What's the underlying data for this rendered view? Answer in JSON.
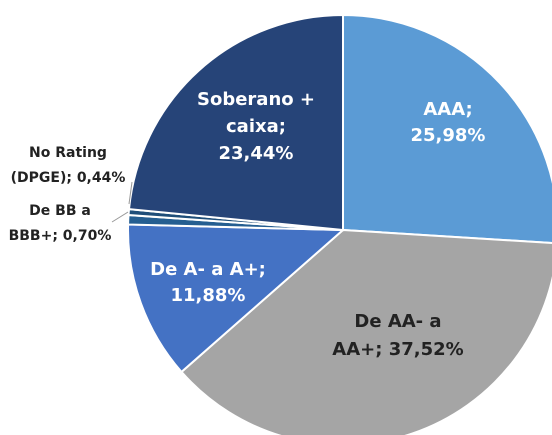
{
  "chart_data": {
    "type": "pie",
    "values": [
      25.98,
      37.52,
      11.88,
      0.7,
      0.44,
      23.44
    ],
    "value_labels": [
      [
        "AAA;",
        "25,98%"
      ],
      [
        "De AA- a",
        "AA+; 37,52%"
      ],
      [
        "De A- a A+;",
        "11,88%"
      ],
      [
        "De BB a",
        "BBB+; 0,70%"
      ],
      [
        "No Rating",
        "(DPGE); 0,44%"
      ],
      [
        "Soberano +",
        "caixa;",
        "23,44%"
      ]
    ],
    "colors": [
      "#5b9bd5",
      "#a5a5a5",
      "#4472c4",
      "#255e91",
      "#1f4e79",
      "#264478"
    ]
  }
}
